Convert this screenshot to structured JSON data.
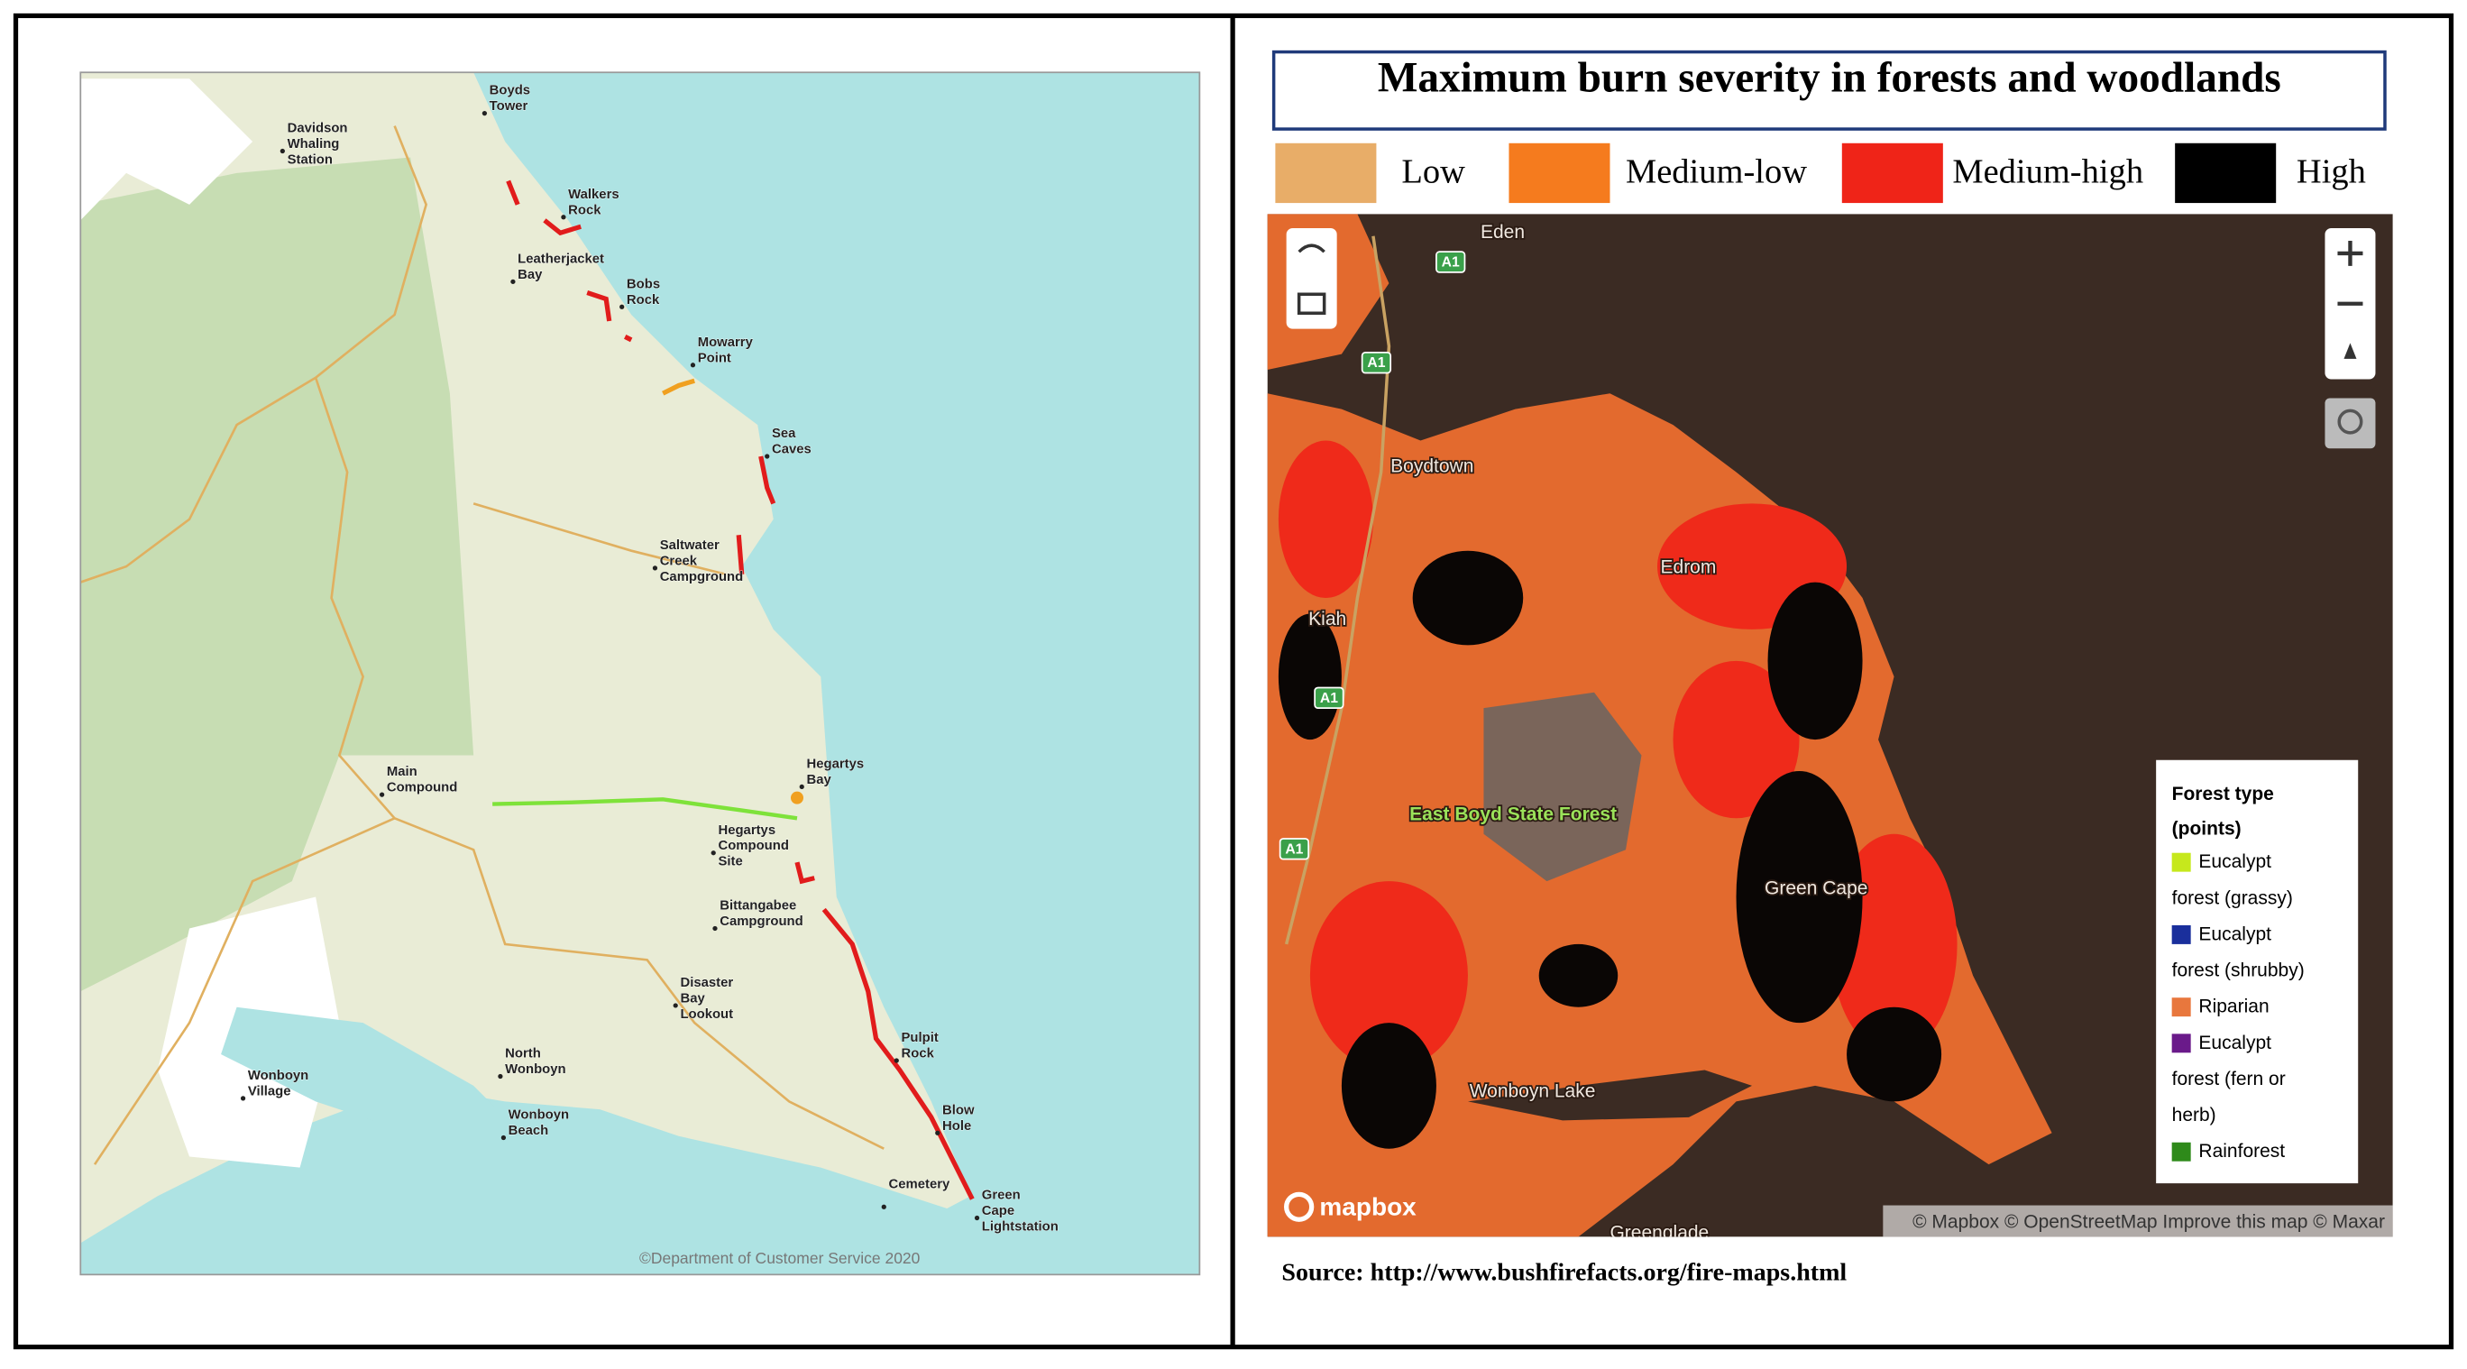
{
  "left_map": {
    "labels": [
      "Boyds Tower",
      "Davidson Whaling Station",
      "Walkers Rock",
      "Leatherjacket Bay",
      "Bobs Rock",
      "Mowarry Point",
      "Sea Caves",
      "Saltwater Creek Campground",
      "Hegartys Bay",
      "Main Compound",
      "Hegartys Compound Site",
      "Bittangabee Campground",
      "Disaster Bay Lookout",
      "Pulpit Rock",
      "Blow Hole",
      "North Wonboyn",
      "Wonboyn Village",
      "Wonboyn Beach",
      "Cemetery",
      "Green Cape Lightstation"
    ],
    "copyright": "©Department of Customer Service 2020"
  },
  "right_panel": {
    "title": "Maximum burn severity in forests and woodlands",
    "legend": [
      {
        "label": "Low",
        "color": "#e8ad68"
      },
      {
        "label": "Medium-low",
        "color": "#f57b1e"
      },
      {
        "label": "Medium-high",
        "color": "#ef2418"
      },
      {
        "label": "High",
        "color": "#000000"
      }
    ]
  },
  "right_map": {
    "labels": [
      "Eden",
      "Boydtown",
      "Edrom",
      "Kiah",
      "East Boyd State Forest",
      "Green Cape",
      "Wonboyn Lake",
      "Greenglade"
    ],
    "road_shields": [
      "A1",
      "A1",
      "A1",
      "A1"
    ],
    "logo": "mapbox",
    "attribution": "© Mapbox © OpenStreetMap Improve this map © Maxar"
  },
  "forest_legend": {
    "title": "Forest type (points)",
    "items": [
      {
        "label": "Eucalypt forest (grassy)",
        "color": "#c6e81c"
      },
      {
        "label": "Eucalypt forest (shrubby)",
        "color": "#1a2f9c"
      },
      {
        "label": "Riparian",
        "color": "#e8773d"
      },
      {
        "label": "Eucalypt forest (fern or herb)",
        "color": "#6a1a8a"
      },
      {
        "label": "Rainforest",
        "color": "#2e8a1a"
      }
    ]
  },
  "source": "Source: http://www.bushfirefacts.org/fire-maps.html"
}
